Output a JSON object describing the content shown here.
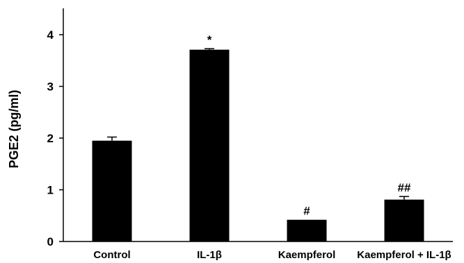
{
  "chart_data": {
    "type": "bar",
    "title": "",
    "xlabel": "",
    "ylabel": "PGE2 (pg/ml)",
    "ylim": [
      0,
      4.4
    ],
    "yticks": [
      0,
      1,
      2,
      3,
      4
    ],
    "ytick_labels": [
      "0",
      "1",
      "2",
      "3",
      "4"
    ],
    "grid": false,
    "legend": "none",
    "bar_color": "#000000",
    "categories": [
      "Control",
      "IL-1β",
      "Kaempferol",
      "Kaempferol + IL-1β"
    ],
    "values": [
      1.95,
      3.71,
      0.42,
      0.81
    ],
    "errors": [
      0.07,
      0.02,
      0.0,
      0.06
    ],
    "annotations": [
      "",
      "*",
      "#",
      "##"
    ]
  }
}
